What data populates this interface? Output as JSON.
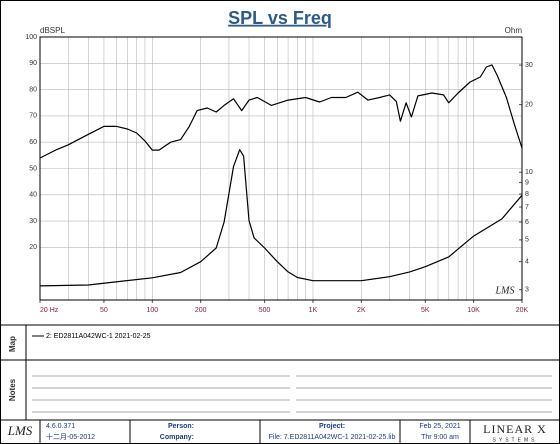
{
  "chart_data": {
    "type": "line",
    "title": "SPL vs Freq",
    "y_label": "dBSPL",
    "y2_label": "Ohm",
    "xscale": "log",
    "y2scale": "log",
    "grid": true,
    "xlim": [
      20,
      20000
    ],
    "ylim": [
      0,
      100
    ],
    "y2lim": [
      2.7,
      40
    ],
    "xticks": [
      {
        "value": 20,
        "label": "20 Hz"
      },
      50,
      100,
      200,
      500,
      {
        "value": 1000,
        "label": "1K"
      },
      {
        "value": 2000,
        "label": "2K"
      },
      {
        "value": 5000,
        "label": "5K"
      },
      {
        "value": 10000,
        "label": "10K"
      },
      {
        "value": 20000,
        "label": "20K"
      }
    ],
    "xgrid": [
      20,
      30,
      40,
      50,
      60,
      70,
      80,
      90,
      100,
      200,
      300,
      400,
      500,
      600,
      700,
      800,
      900,
      1000,
      2000,
      3000,
      4000,
      5000,
      6000,
      7000,
      8000,
      9000,
      10000,
      20000
    ],
    "yticks": [
      20,
      30,
      40,
      50,
      60,
      70,
      80,
      90,
      100
    ],
    "y2ticks": [
      3,
      4,
      5,
      6,
      7,
      8,
      9,
      10,
      20,
      30
    ],
    "series": [
      {
        "name": "2: ED2811A042WC-1 2021-02-25",
        "color": "#000000",
        "x": [
          20,
          25,
          30,
          40,
          50,
          60,
          70,
          80,
          90,
          100,
          110,
          130,
          150,
          170,
          190,
          220,
          250,
          280,
          320,
          360,
          400,
          450,
          550,
          700,
          900,
          1100,
          1300,
          1600,
          1900,
          2200,
          2600,
          3000,
          3300,
          3500,
          3800,
          4100,
          4500,
          5500,
          6500,
          7000,
          8000,
          9500,
          11000,
          12000,
          13000,
          14000,
          16000,
          18000,
          20000
        ],
        "values": [
          54,
          57,
          59,
          63,
          66,
          66,
          65,
          63.5,
          60.5,
          57,
          57,
          60,
          61,
          66,
          72,
          73,
          71.5,
          74,
          76.5,
          72,
          76,
          77,
          74,
          76,
          77,
          75.3,
          77,
          77,
          79,
          76,
          77,
          78,
          75.5,
          68,
          75,
          69.6,
          77.6,
          78.7,
          78,
          75,
          78.7,
          82.9,
          84.8,
          88.6,
          89.4,
          85.5,
          77,
          66.5,
          57.8
        ]
      },
      {
        "color": "#000000",
        "axis": "y2",
        "x": [
          20,
          40,
          100,
          150,
          200,
          250,
          280,
          320,
          350,
          370,
          400,
          430,
          500,
          600,
          700,
          800,
          1000,
          2000,
          3000,
          4000,
          5000,
          7000,
          10000,
          15000,
          20000
        ],
        "values": [
          3.12,
          3.15,
          3.39,
          3.58,
          4.0,
          4.6,
          6.0,
          10.6,
          12.6,
          11.8,
          6.1,
          5.1,
          4.6,
          4.0,
          3.6,
          3.4,
          3.29,
          3.29,
          3.43,
          3.6,
          3.8,
          4.2,
          5.2,
          6.2,
          7.9
        ]
      }
    ],
    "watermark": "LMS"
  },
  "panels": {
    "map": "Map",
    "notes": "Notes"
  },
  "footer": {
    "logo": "LMS",
    "version": "4.6.0.371",
    "build_date": "十二月-05-2012",
    "person": "Person:",
    "company": "Company:",
    "project": "Project:",
    "file": "File: 7.ED2811A042WC-1 2021-02-25.lib",
    "date": "Feb 25, 2021",
    "time": "Thr  9:00 am",
    "brand": "LINEAR X",
    "brand_sub": "SYSTEMS"
  }
}
